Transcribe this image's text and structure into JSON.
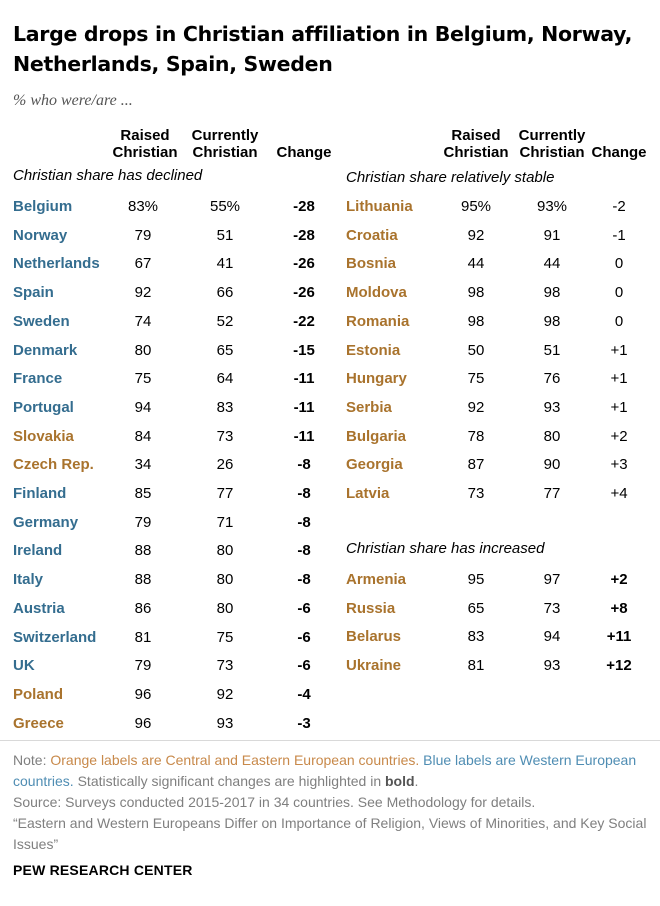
{
  "title": "Large drops in Christian affiliation in Belgium, Norway, Netherlands, Spain, Sweden",
  "subtitle": "% who were/are ...",
  "columns": {
    "raised": "Raised Christian",
    "raised_l1": "Raised",
    "raised_l2": "Christian",
    "current_l1": "Currently",
    "current_l2": "Christian",
    "change": "Change"
  },
  "colors": {
    "western": "#346d8f",
    "eastern": "#a9732d"
  },
  "chart_data": {
    "type": "table",
    "title": "Large drops in Christian affiliation in Belgium, Norway, Netherlands, Spain, Sweden",
    "columns": [
      "Raised Christian",
      "Currently Christian",
      "Change"
    ],
    "sections": [
      {
        "label": "Christian share has declined",
        "rows": [
          {
            "country": "Belgium",
            "raised": "83%",
            "current": "55%",
            "change": "-28",
            "region": "western",
            "significant": true
          },
          {
            "country": "Norway",
            "raised": "79",
            "current": "51",
            "change": "-28",
            "region": "western",
            "significant": true
          },
          {
            "country": "Netherlands",
            "raised": "67",
            "current": "41",
            "change": "-26",
            "region": "western",
            "significant": true
          },
          {
            "country": "Spain",
            "raised": "92",
            "current": "66",
            "change": "-26",
            "region": "western",
            "significant": true
          },
          {
            "country": "Sweden",
            "raised": "74",
            "current": "52",
            "change": "-22",
            "region": "western",
            "significant": true
          },
          {
            "country": "Denmark",
            "raised": "80",
            "current": "65",
            "change": "-15",
            "region": "western",
            "significant": true
          },
          {
            "country": "France",
            "raised": "75",
            "current": "64",
            "change": "-11",
            "region": "western",
            "significant": true
          },
          {
            "country": "Portugal",
            "raised": "94",
            "current": "83",
            "change": "-11",
            "region": "western",
            "significant": true
          },
          {
            "country": "Slovakia",
            "raised": "84",
            "current": "73",
            "change": "-11",
            "region": "eastern",
            "significant": true
          },
          {
            "country": "Czech Rep.",
            "raised": "34",
            "current": "26",
            "change": "-8",
            "region": "eastern",
            "significant": true
          },
          {
            "country": "Finland",
            "raised": "85",
            "current": "77",
            "change": "-8",
            "region": "western",
            "significant": true
          },
          {
            "country": "Germany",
            "raised": "79",
            "current": "71",
            "change": "-8",
            "region": "western",
            "significant": true
          },
          {
            "country": "Ireland",
            "raised": "88",
            "current": "80",
            "change": "-8",
            "region": "western",
            "significant": true
          },
          {
            "country": "Italy",
            "raised": "88",
            "current": "80",
            "change": "-8",
            "region": "western",
            "significant": true
          },
          {
            "country": "Austria",
            "raised": "86",
            "current": "80",
            "change": "-6",
            "region": "western",
            "significant": true
          },
          {
            "country": "Switzerland",
            "raised": "81",
            "current": "75",
            "change": "-6",
            "region": "western",
            "significant": true
          },
          {
            "country": "UK",
            "raised": "79",
            "current": "73",
            "change": "-6",
            "region": "western",
            "significant": true
          },
          {
            "country": "Poland",
            "raised": "96",
            "current": "92",
            "change": "-4",
            "region": "eastern",
            "significant": true
          },
          {
            "country": "Greece",
            "raised": "96",
            "current": "93",
            "change": "-3",
            "region": "eastern",
            "significant": true
          }
        ]
      },
      {
        "label": "Christian share relatively stable",
        "rows": [
          {
            "country": "Lithuania",
            "raised": "95%",
            "current": "93%",
            "change": "-2",
            "region": "eastern",
            "significant": false
          },
          {
            "country": "Croatia",
            "raised": "92",
            "current": "91",
            "change": "-1",
            "region": "eastern",
            "significant": false
          },
          {
            "country": "Bosnia",
            "raised": "44",
            "current": "44",
            "change": "0",
            "region": "eastern",
            "significant": false
          },
          {
            "country": "Moldova",
            "raised": "98",
            "current": "98",
            "change": "0",
            "region": "eastern",
            "significant": false
          },
          {
            "country": "Romania",
            "raised": "98",
            "current": "98",
            "change": "0",
            "region": "eastern",
            "significant": false
          },
          {
            "country": "Estonia",
            "raised": "50",
            "current": "51",
            "change": "+1",
            "region": "eastern",
            "significant": false
          },
          {
            "country": "Hungary",
            "raised": "75",
            "current": "76",
            "change": "+1",
            "region": "eastern",
            "significant": false
          },
          {
            "country": "Serbia",
            "raised": "92",
            "current": "93",
            "change": "+1",
            "region": "eastern",
            "significant": false
          },
          {
            "country": "Bulgaria",
            "raised": "78",
            "current": "80",
            "change": "+2",
            "region": "eastern",
            "significant": false
          },
          {
            "country": "Georgia",
            "raised": "87",
            "current": "90",
            "change": "+3",
            "region": "eastern",
            "significant": false
          },
          {
            "country": "Latvia",
            "raised": "73",
            "current": "77",
            "change": "+4",
            "region": "eastern",
            "significant": false
          }
        ]
      },
      {
        "label": "Christian share has increased",
        "rows": [
          {
            "country": "Armenia",
            "raised": "95",
            "current": "97",
            "change": "+2",
            "region": "eastern",
            "significant": true
          },
          {
            "country": "Russia",
            "raised": "65",
            "current": "73",
            "change": "+8",
            "region": "eastern",
            "significant": true
          },
          {
            "country": "Belarus",
            "raised": "83",
            "current": "94",
            "change": "+11",
            "region": "eastern",
            "significant": true
          },
          {
            "country": "Ukraine",
            "raised": "81",
            "current": "93",
            "change": "+12",
            "region": "eastern",
            "significant": true
          }
        ]
      }
    ]
  },
  "note": {
    "prefix": "Note: ",
    "orange_text": "Orange labels are Central and Eastern European countries.",
    "blue_text": "Blue labels are Western European countries.",
    "rest": " Statistically significant changes are highlighted in ",
    "bold_word": "bold",
    "end": ".",
    "source": "Source: Surveys conducted 2015-2017 in 34 countries. See Methodology for details.",
    "report": "“Eastern and Western Europeans Differ on Importance of Religion, Views of Minorities, and Key Social Issues”"
  },
  "brand": "PEW RESEARCH CENTER"
}
